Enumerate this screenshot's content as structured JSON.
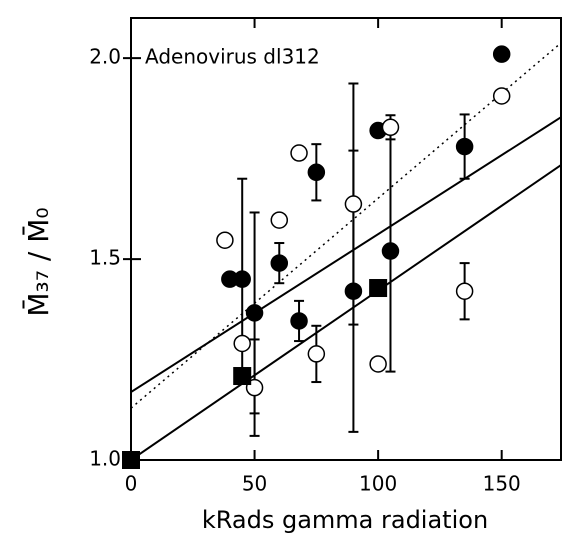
{
  "chart_data": {
    "type": "scatter",
    "annotation": "Adenovirus dl312",
    "x_label": "kRads gamma radiation",
    "y_label": "M̄₃₇ / M̄₀",
    "xlim": [
      0,
      174
    ],
    "ylim": [
      1.0,
      2.1
    ],
    "xticks": [
      0,
      50,
      100,
      150
    ],
    "yticks": [
      {
        "value": 1.0,
        "label": "1.0"
      },
      {
        "value": 1.5,
        "label": "1.5"
      },
      {
        "value": 2.0,
        "label": "2.0"
      }
    ],
    "series": [
      {
        "marker": "filled-circle",
        "color": "#000",
        "x": [
          40,
          45,
          50,
          60,
          68,
          75,
          90,
          100,
          105,
          135,
          150
        ],
        "values": [
          1.45,
          1.45,
          1.366,
          1.49,
          1.346,
          1.716,
          1.42,
          1.82,
          1.52,
          1.78,
          2.01
        ],
        "errors": [
          null,
          0.25,
          0.25,
          0.05,
          0.05,
          0.07,
          0.35,
          null,
          0.3,
          0.08,
          null
        ]
      },
      {
        "marker": "open-circle",
        "color": "#000",
        "x": [
          38,
          45,
          50,
          60,
          68,
          75,
          90,
          100,
          105,
          135,
          150
        ],
        "values": [
          1.547,
          1.29,
          1.18,
          1.597,
          1.764,
          1.264,
          1.637,
          1.239,
          1.828,
          1.42,
          1.906
        ],
        "errors": [
          null,
          null,
          0.12,
          null,
          null,
          0.07,
          0.3,
          null,
          0.03,
          0.07,
          null
        ]
      },
      {
        "marker": "square",
        "color": "#000",
        "x": [
          0,
          45,
          100
        ],
        "values": [
          1.0,
          1.209,
          1.428
        ]
      }
    ],
    "lines": [
      {
        "style": "solid",
        "x": [
          0,
          174
        ],
        "values": [
          1.169,
          1.853
        ]
      },
      {
        "style": "solid",
        "x": [
          0,
          174
        ],
        "values": [
          1.0,
          1.734
        ]
      },
      {
        "style": "dotted",
        "x": [
          0,
          174
        ],
        "values": [
          1.129,
          2.038
        ]
      }
    ]
  }
}
